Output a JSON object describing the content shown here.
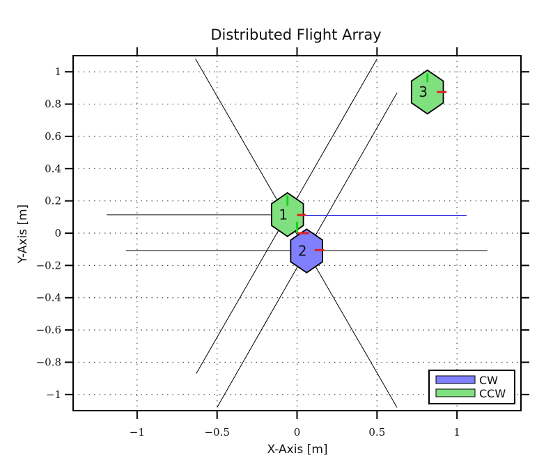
{
  "chart_data": {
    "type": "diagram-plot",
    "title": "Distributed Flight Array",
    "xlabel": "X-Axis [m]",
    "ylabel": "Y-Axis [m]",
    "xlim": [
      -1.4,
      1.4
    ],
    "ylim": [
      -1.1,
      1.1
    ],
    "xticks": [
      -1,
      -0.5,
      0,
      0.5,
      1
    ],
    "xtick_labels": [
      "−1",
      "−0.5",
      "0",
      "0.5",
      "1"
    ],
    "yticks": [
      1,
      0.8,
      0.6,
      0.4,
      0.2,
      0,
      -0.2,
      -0.4,
      -0.6,
      -0.8,
      -1
    ],
    "ytick_labels": [
      "1",
      "0.8",
      "0.6",
      "0.4",
      "0.2",
      "0",
      "−0.2",
      "−0.4",
      "−0.6",
      "−0.8",
      "−1"
    ],
    "grid": true,
    "legend_position": "bottom-right",
    "legend": [
      {
        "label": "CW",
        "color": "#8080ff"
      },
      {
        "label": "CCW",
        "color": "#80e080"
      }
    ],
    "modules": [
      {
        "id": "1",
        "label": "1",
        "x": -0.06,
        "y": 0.115,
        "spin": "CCW",
        "color": "#80e080"
      },
      {
        "id": "2",
        "label": "2",
        "x": 0.06,
        "y": -0.11,
        "spin": "CW",
        "color": "#8080ff"
      },
      {
        "id": "3",
        "label": "3",
        "x": 0.815,
        "y": 0.875,
        "spin": "CCW",
        "color": "#80e080"
      }
    ],
    "reference_lines": [
      {
        "x1": -1.19,
        "y1": 0.113,
        "x2": 0.0,
        "y2": 0.113,
        "color": "#000000"
      },
      {
        "x1": -1.07,
        "y1": -0.108,
        "x2": 1.19,
        "y2": -0.108,
        "color": "#000000"
      },
      {
        "x1": -0.635,
        "y1": 1.08,
        "x2": 0.625,
        "y2": -1.08,
        "color": "#000000"
      },
      {
        "x1": 0.5,
        "y1": 1.08,
        "x2": -0.63,
        "y2": -0.87,
        "color": "#000000"
      },
      {
        "x1": 0.625,
        "y1": 0.87,
        "x2": -0.5,
        "y2": -1.08,
        "color": "#000000"
      },
      {
        "x1": 0.0,
        "y1": 0.11,
        "x2": 1.06,
        "y2": 0.11,
        "color": "#3030e0"
      }
    ],
    "markers": [
      {
        "x1": -0.06,
        "y1": 0.17,
        "x2": -0.06,
        "y2": 0.235,
        "color": "#20d020"
      },
      {
        "x1": 0.0,
        "y1": 0.113,
        "x2": 0.055,
        "y2": 0.113,
        "color": "#e02020"
      },
      {
        "x1": 0.0,
        "y1": 0.07,
        "x2": 0.0,
        "y2": 0.0,
        "color": "#20d020"
      },
      {
        "x1": 0.005,
        "y1": 0.0,
        "x2": 0.075,
        "y2": 0.0,
        "color": "#e02020"
      },
      {
        "x1": 0.11,
        "y1": -0.105,
        "x2": 0.17,
        "y2": -0.105,
        "color": "#e02020"
      },
      {
        "x1": 0.815,
        "y1": 0.935,
        "x2": 0.815,
        "y2": 0.99,
        "color": "#20d020"
      },
      {
        "x1": 0.875,
        "y1": 0.875,
        "x2": 0.935,
        "y2": 0.875,
        "color": "#e02020"
      }
    ]
  }
}
